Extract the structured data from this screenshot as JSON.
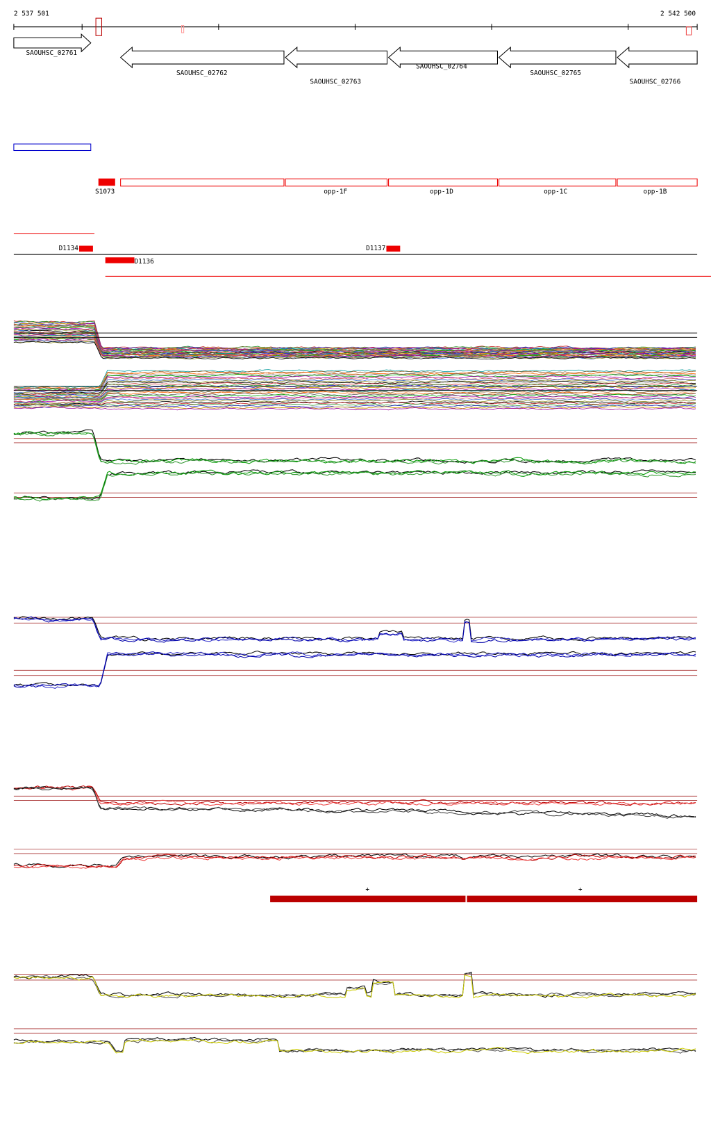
{
  "header": {
    "start": "2 537 501",
    "end": "2 542 500"
  },
  "genes": [
    {
      "label": "SAOUHSC_02761"
    },
    {
      "label": "SAOUHSC_02762"
    },
    {
      "label": "SAOUHSC_02763"
    },
    {
      "label": "SAOUHSC_02764"
    },
    {
      "label": "SAOUHSC_02765"
    },
    {
      "label": "SAOUHSC_02766"
    }
  ],
  "features": {
    "s_label": "S1073",
    "opp": [
      "opp-1F",
      "opp-1D",
      "opp-1C",
      "opp-1B"
    ]
  },
  "segments": {
    "d1": "D1134",
    "d2": "D1137",
    "d3": "D1136"
  },
  "strand": [
    "+",
    "+"
  ]
}
